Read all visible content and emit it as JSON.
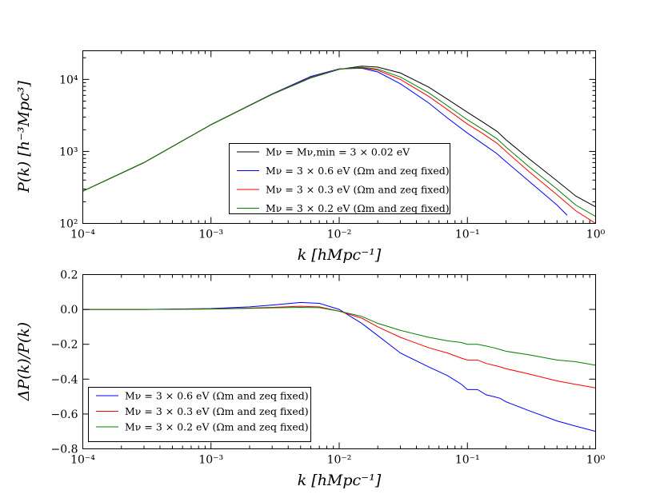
{
  "chart_data": [
    {
      "type": "line",
      "xscale": "log",
      "yscale": "log",
      "xlim": [
        0.0001,
        1
      ],
      "ylim": [
        100,
        25000
      ],
      "xlabel": "k [hMpc⁻¹]",
      "ylabel": "P(k) [h⁻³Mpc³]",
      "x_ticks": [
        {
          "value": 0.0001,
          "label": "10⁻⁴"
        },
        {
          "value": 0.001,
          "label": "10⁻³"
        },
        {
          "value": 0.01,
          "label": "10⁻²"
        },
        {
          "value": 0.1,
          "label": "10⁻¹"
        },
        {
          "value": 1,
          "label": "10⁰"
        }
      ],
      "y_ticks": [
        {
          "value": 100,
          "label": "10²"
        },
        {
          "value": 1000,
          "label": "10³"
        },
        {
          "value": 10000,
          "label": "10⁴"
        }
      ],
      "legend_position": "lower-center",
      "series": [
        {
          "name": "Mν = Mν,min = 3 × 0.02 eV",
          "color": "#000000",
          "x": [
            0.0001,
            0.0003,
            0.001,
            0.003,
            0.006,
            0.01,
            0.015,
            0.02,
            0.03,
            0.05,
            0.07,
            0.1,
            0.13,
            0.17,
            0.2,
            0.3,
            0.5,
            0.7,
            1.0
          ],
          "y": [
            280,
            700,
            2350,
            6200,
            10500,
            13800,
            15300,
            14800,
            12300,
            7800,
            5300,
            3500,
            2600,
            1900,
            1450,
            800,
            390,
            240,
            170
          ]
        },
        {
          "name": "Mν = 3 × 0.6 eV (Ωm and zeq fixed)",
          "color": "#0000ff",
          "x": [
            0.0001,
            0.0003,
            0.001,
            0.003,
            0.006,
            0.01,
            0.015,
            0.02,
            0.03,
            0.05,
            0.07,
            0.1,
            0.13,
            0.17,
            0.2,
            0.3,
            0.5,
            0.6
          ],
          "y": [
            280,
            700,
            2350,
            6300,
            11000,
            14000,
            14300,
            12700,
            8700,
            4700,
            2900,
            1800,
            1300,
            930,
            720,
            390,
            180,
            130
          ]
        },
        {
          "name": "Mν = 3 × 0.3 eV (Ωm and zeq fixed)",
          "color": "#ff0000",
          "x": [
            0.0001,
            0.0003,
            0.001,
            0.003,
            0.006,
            0.01,
            0.015,
            0.02,
            0.03,
            0.05,
            0.07,
            0.1,
            0.13,
            0.17,
            0.2,
            0.3,
            0.5,
            0.7,
            1.0
          ],
          "y": [
            280,
            700,
            2350,
            6250,
            10700,
            13900,
            14500,
            13400,
            10000,
            5800,
            3800,
            2400,
            1800,
            1300,
            1000,
            530,
            250,
            150,
            100
          ]
        },
        {
          "name": "Mν = 3 × 0.2 eV (Ωm and zeq fixed)",
          "color": "#008000",
          "x": [
            0.0001,
            0.0003,
            0.001,
            0.003,
            0.006,
            0.01,
            0.015,
            0.02,
            0.03,
            0.05,
            0.07,
            0.1,
            0.13,
            0.17,
            0.2,
            0.3,
            0.5,
            0.7,
            1.0
          ],
          "y": [
            280,
            700,
            2350,
            6220,
            10600,
            13850,
            14700,
            13900,
            10800,
            6500,
            4300,
            2750,
            2050,
            1500,
            1150,
            620,
            300,
            180,
            125
          ]
        }
      ]
    },
    {
      "type": "line",
      "xscale": "log",
      "yscale": "linear",
      "xlim": [
        0.0001,
        1
      ],
      "ylim": [
        -0.8,
        0.2
      ],
      "xlabel": "k [hMpc⁻¹]",
      "ylabel": "ΔP(k)/P(k)",
      "x_ticks": [
        {
          "value": 0.0001,
          "label": "10⁻⁴"
        },
        {
          "value": 0.001,
          "label": "10⁻³"
        },
        {
          "value": 0.01,
          "label": "10⁻²"
        },
        {
          "value": 0.1,
          "label": "10⁻¹"
        },
        {
          "value": 1,
          "label": "10⁰"
        }
      ],
      "y_ticks": [
        {
          "value": 0.2,
          "label": "0.2"
        },
        {
          "value": 0.0,
          "label": "0.0"
        },
        {
          "value": -0.2,
          "label": "−0.2"
        },
        {
          "value": -0.4,
          "label": "−0.4"
        },
        {
          "value": -0.6,
          "label": "−0.6"
        },
        {
          "value": -0.8,
          "label": "−0.8"
        }
      ],
      "legend_position": "lower-left",
      "series": [
        {
          "name": "Mν = 3 × 0.6 eV (Ωm and zeq fixed)",
          "color": "#0000ff",
          "x": [
            0.0001,
            0.0003,
            0.001,
            0.002,
            0.003,
            0.005,
            0.007,
            0.01,
            0.015,
            0.02,
            0.03,
            0.05,
            0.07,
            0.09,
            0.1,
            0.12,
            0.14,
            0.16,
            0.18,
            0.2,
            0.3,
            0.5,
            0.7,
            1.0
          ],
          "y": [
            0.0,
            0.0,
            0.005,
            0.015,
            0.025,
            0.04,
            0.035,
            0.0,
            -0.08,
            -0.15,
            -0.25,
            -0.33,
            -0.38,
            -0.43,
            -0.46,
            -0.46,
            -0.49,
            -0.5,
            -0.51,
            -0.53,
            -0.58,
            -0.64,
            -0.67,
            -0.7
          ]
        },
        {
          "name": "Mν = 3 × 0.3 eV (Ωm and zeq fixed)",
          "color": "#ff0000",
          "x": [
            0.0001,
            0.0003,
            0.001,
            0.002,
            0.003,
            0.005,
            0.007,
            0.01,
            0.015,
            0.02,
            0.03,
            0.05,
            0.07,
            0.09,
            0.1,
            0.12,
            0.14,
            0.16,
            0.18,
            0.2,
            0.3,
            0.5,
            0.7,
            1.0
          ],
          "y": [
            0.0,
            0.0,
            0.003,
            0.008,
            0.012,
            0.018,
            0.015,
            -0.01,
            -0.05,
            -0.1,
            -0.16,
            -0.22,
            -0.25,
            -0.28,
            -0.29,
            -0.29,
            -0.31,
            -0.32,
            -0.33,
            -0.34,
            -0.37,
            -0.41,
            -0.43,
            -0.45
          ]
        },
        {
          "name": "Mν = 3 × 0.2 eV (Ωm and zeq fixed)",
          "color": "#008000",
          "x": [
            0.0001,
            0.0003,
            0.001,
            0.002,
            0.003,
            0.005,
            0.007,
            0.01,
            0.015,
            0.02,
            0.03,
            0.05,
            0.07,
            0.09,
            0.1,
            0.12,
            0.14,
            0.16,
            0.18,
            0.2,
            0.3,
            0.5,
            0.7,
            1.0
          ],
          "y": [
            0.0,
            0.0,
            0.002,
            0.006,
            0.009,
            0.012,
            0.01,
            -0.01,
            -0.04,
            -0.08,
            -0.12,
            -0.16,
            -0.18,
            -0.19,
            -0.2,
            -0.2,
            -0.21,
            -0.22,
            -0.23,
            -0.24,
            -0.26,
            -0.29,
            -0.3,
            -0.32
          ]
        }
      ]
    }
  ]
}
